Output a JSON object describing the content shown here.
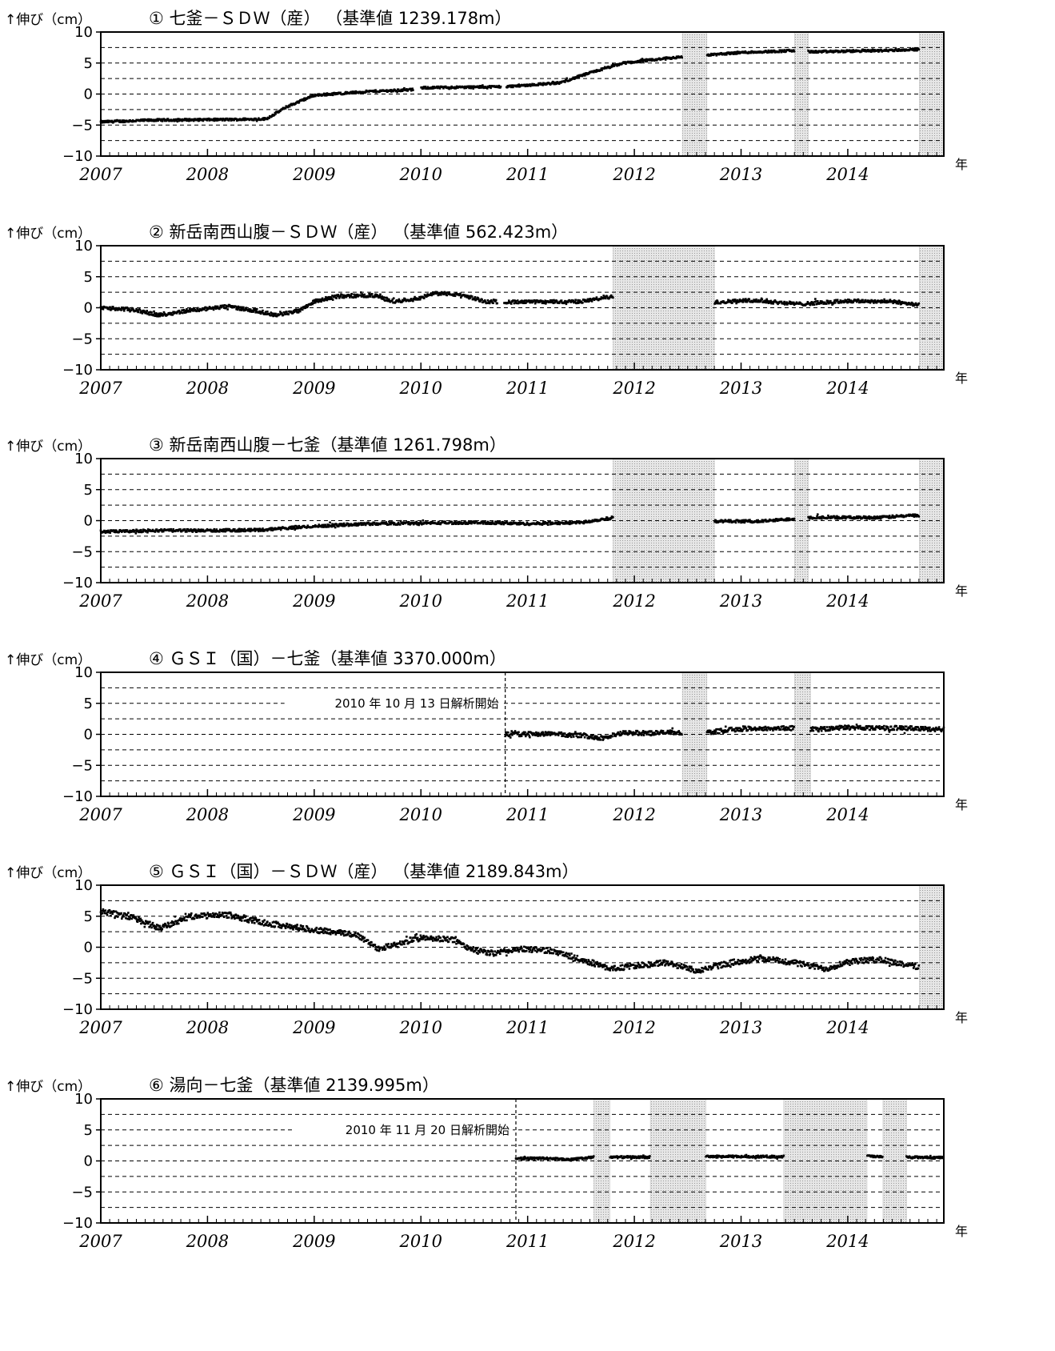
{
  "y_axis_label": "↑伸び（cm）",
  "x_unit": "年",
  "chart_data": [
    {
      "type": "scatter",
      "title": "① 七釜－ＳＤＷ（産） （基準値 1239.178m）",
      "ylabel": "↑伸び（cm）",
      "xlabel": "年",
      "xlim": [
        2007,
        2014.9
      ],
      "ylim": [
        -10,
        10
      ],
      "yticks": [
        10,
        5,
        0,
        -5,
        -10
      ],
      "xticks": [
        "2007",
        "2008",
        "2009",
        "2010",
        "2011",
        "2012",
        "2013",
        "2014"
      ],
      "reference_lines": [
        7.5,
        5,
        2.5,
        0,
        -2.5,
        -5,
        -7.5
      ],
      "missing_periods": [
        [
          2012.45,
          2012.68
        ],
        [
          2013.5,
          2013.63
        ],
        [
          2014.67,
          2014.9
        ]
      ],
      "series": [
        {
          "knots": [
            [
              2007.0,
              -4.5
            ],
            [
              2007.5,
              -4.2
            ],
            [
              2008.3,
              -4.1
            ],
            [
              2008.55,
              -4.0
            ],
            [
              2008.75,
              -2.0
            ],
            [
              2009.0,
              -0.2
            ],
            [
              2009.5,
              0.4
            ],
            [
              2009.93,
              0.7
            ],
            [
              2010.0,
              1.0
            ],
            [
              2010.8,
              1.2
            ],
            [
              2011.3,
              1.8
            ],
            [
              2011.6,
              3.5
            ],
            [
              2011.9,
              5.0
            ],
            [
              2012.45,
              6.0
            ],
            [
              2012.7,
              6.3
            ],
            [
              2013.0,
              6.7
            ],
            [
              2013.5,
              7.0
            ],
            [
              2013.65,
              6.8
            ],
            [
              2014.3,
              7.0
            ],
            [
              2014.67,
              7.2
            ]
          ],
          "gaps": [
            [
              2009.93,
              2010.0
            ],
            [
              2010.75,
              2010.8
            ],
            [
              2012.45,
              2012.68
            ],
            [
              2013.5,
              2013.63
            ],
            [
              2014.67,
              2014.9
            ]
          ],
          "scatter_cm": 0.18
        }
      ]
    },
    {
      "type": "scatter",
      "title": "② 新岳南西山腹－ＳＤＷ（産） （基準値 562.423m）",
      "ylabel": "↑伸び（cm）",
      "xlabel": "年",
      "xlim": [
        2007,
        2014.9
      ],
      "ylim": [
        -10,
        10
      ],
      "yticks": [
        10,
        5,
        0,
        -5,
        -10
      ],
      "xticks": [
        "2007",
        "2008",
        "2009",
        "2010",
        "2011",
        "2012",
        "2013",
        "2014"
      ],
      "reference_lines": [
        7.5,
        5,
        2.5,
        0,
        -2.5,
        -5,
        -7.5
      ],
      "missing_periods": [
        [
          2011.8,
          2012.75
        ],
        [
          2014.67,
          2014.9
        ]
      ],
      "series": [
        {
          "knots": [
            [
              2007.0,
              0.0
            ],
            [
              2007.3,
              -0.3
            ],
            [
              2007.55,
              -1.2
            ],
            [
              2007.8,
              -0.5
            ],
            [
              2008.2,
              0.2
            ],
            [
              2008.45,
              -0.5
            ],
            [
              2008.65,
              -1.2
            ],
            [
              2008.85,
              -0.5
            ],
            [
              2009.0,
              1.0
            ],
            [
              2009.2,
              1.8
            ],
            [
              2009.55,
              2.0
            ],
            [
              2009.75,
              1.0
            ],
            [
              2010.0,
              1.6
            ],
            [
              2010.15,
              2.4
            ],
            [
              2010.4,
              2.0
            ],
            [
              2010.6,
              1.0
            ],
            [
              2010.9,
              0.9
            ],
            [
              2011.5,
              1.0
            ],
            [
              2011.8,
              1.8
            ],
            [
              2012.75,
              0.9
            ],
            [
              2013.1,
              1.2
            ],
            [
              2013.55,
              0.6
            ],
            [
              2014.0,
              1.1
            ],
            [
              2014.4,
              1.0
            ],
            [
              2014.67,
              0.5
            ]
          ],
          "gaps": [
            [
              2010.72,
              2010.78
            ],
            [
              2011.8,
              2012.75
            ],
            [
              2014.67,
              2014.9
            ]
          ],
          "scatter_cm": 0.28
        }
      ]
    },
    {
      "type": "scatter",
      "title": "③ 新岳南西山腹－七釜（基準値 1261.798m）",
      "ylabel": "↑伸び（cm）",
      "xlabel": "年",
      "xlim": [
        2007,
        2014.9
      ],
      "ylim": [
        -10,
        10
      ],
      "yticks": [
        10,
        5,
        0,
        -5,
        -10
      ],
      "xticks": [
        "2007",
        "2008",
        "2009",
        "2010",
        "2011",
        "2012",
        "2013",
        "2014"
      ],
      "reference_lines": [
        7.5,
        5,
        2.5,
        0,
        -2.5,
        -5,
        -7.5
      ],
      "missing_periods": [
        [
          2011.8,
          2012.75
        ],
        [
          2013.5,
          2013.63
        ],
        [
          2014.67,
          2014.9
        ]
      ],
      "series": [
        {
          "knots": [
            [
              2007.0,
              -1.8
            ],
            [
              2007.5,
              -1.6
            ],
            [
              2008.0,
              -1.6
            ],
            [
              2008.5,
              -1.5
            ],
            [
              2009.0,
              -0.9
            ],
            [
              2009.5,
              -0.5
            ],
            [
              2010.0,
              -0.4
            ],
            [
              2010.5,
              -0.3
            ],
            [
              2011.0,
              -0.5
            ],
            [
              2011.5,
              -0.3
            ],
            [
              2011.8,
              0.5
            ],
            [
              2012.75,
              -0.1
            ],
            [
              2013.2,
              -0.1
            ],
            [
              2013.5,
              0.3
            ],
            [
              2013.63,
              0.5
            ],
            [
              2014.3,
              0.5
            ],
            [
              2014.67,
              0.9
            ]
          ],
          "gaps": [
            [
              2011.8,
              2012.75
            ],
            [
              2013.5,
              2013.63
            ],
            [
              2014.67,
              2014.9
            ]
          ],
          "scatter_cm": 0.22
        }
      ]
    },
    {
      "type": "scatter",
      "title": "④ ＧＳＩ（国）－七釜（基準値 3370.000m）",
      "ylabel": "↑伸び（cm）",
      "xlabel": "年",
      "xlim": [
        2007,
        2014.9
      ],
      "ylim": [
        -10,
        10
      ],
      "yticks": [
        10,
        5,
        0,
        -5,
        -10
      ],
      "xticks": [
        "2007",
        "2008",
        "2009",
        "2010",
        "2011",
        "2012",
        "2013",
        "2014"
      ],
      "reference_lines": [
        7.5,
        5,
        2.5,
        0,
        -2.5,
        -5,
        -7.5
      ],
      "missing_periods": [
        [
          2012.45,
          2012.68
        ],
        [
          2013.5,
          2013.65
        ]
      ],
      "start_marker": {
        "x": 2010.79,
        "label": "2010 年 10 月 13 日解析開始"
      },
      "series": [
        {
          "knots": [
            [
              2010.79,
              0.0
            ],
            [
              2011.2,
              0.1
            ],
            [
              2011.5,
              -0.2
            ],
            [
              2011.7,
              -0.6
            ],
            [
              2011.9,
              0.2
            ],
            [
              2012.45,
              0.3
            ],
            [
              2012.68,
              0.3
            ],
            [
              2013.0,
              0.9
            ],
            [
              2013.5,
              1.0
            ],
            [
              2013.65,
              0.8
            ],
            [
              2014.0,
              1.1
            ],
            [
              2014.5,
              1.0
            ],
            [
              2014.9,
              0.8
            ]
          ],
          "gaps": [
            [
              2012.45,
              2012.68
            ],
            [
              2013.5,
              2013.65
            ]
          ],
          "scatter_cm": 0.35
        }
      ]
    },
    {
      "type": "scatter",
      "title": "⑤ ＧＳＩ（国）－ＳＤＷ（産） （基準値 2189.843m）",
      "ylabel": "↑伸び（cm）",
      "xlabel": "年",
      "xlim": [
        2007,
        2014.9
      ],
      "ylim": [
        -10,
        10
      ],
      "yticks": [
        10,
        5,
        0,
        -5,
        -10
      ],
      "xticks": [
        "2007",
        "2008",
        "2009",
        "2010",
        "2011",
        "2012",
        "2013",
        "2014"
      ],
      "reference_lines": [
        7.5,
        5,
        2.5,
        0,
        -2.5,
        -5,
        -7.5
      ],
      "missing_periods": [
        [
          2014.67,
          2014.9
        ]
      ],
      "series": [
        {
          "knots": [
            [
              2007.0,
              5.8
            ],
            [
              2007.3,
              4.8
            ],
            [
              2007.55,
              3.0
            ],
            [
              2007.85,
              5.0
            ],
            [
              2008.2,
              5.2
            ],
            [
              2008.5,
              4.0
            ],
            [
              2009.0,
              2.8
            ],
            [
              2009.4,
              2.0
            ],
            [
              2009.6,
              -0.2
            ],
            [
              2009.8,
              0.5
            ],
            [
              2009.95,
              1.5
            ],
            [
              2010.3,
              1.2
            ],
            [
              2010.5,
              -0.5
            ],
            [
              2010.7,
              -1.0
            ],
            [
              2010.9,
              -0.3
            ],
            [
              2011.2,
              -0.5
            ],
            [
              2011.5,
              -2.0
            ],
            [
              2011.8,
              -3.5
            ],
            [
              2012.0,
              -3.0
            ],
            [
              2012.3,
              -2.5
            ],
            [
              2012.6,
              -3.8
            ],
            [
              2012.9,
              -2.5
            ],
            [
              2013.2,
              -1.8
            ],
            [
              2013.5,
              -2.5
            ],
            [
              2013.8,
              -3.5
            ],
            [
              2014.0,
              -2.3
            ],
            [
              2014.3,
              -2.0
            ],
            [
              2014.67,
              -3.2
            ]
          ],
          "gaps": [
            [
              2014.67,
              2014.9
            ]
          ],
          "scatter_cm": 0.45
        }
      ]
    },
    {
      "type": "scatter",
      "title": "⑥ 湯向－七釜（基準値 2139.995m）",
      "ylabel": "↑伸び（cm）",
      "xlabel": "年",
      "xlim": [
        2007,
        2014.9
      ],
      "ylim": [
        -10,
        10
      ],
      "yticks": [
        10,
        5,
        0,
        -5,
        -10
      ],
      "xticks": [
        "2007",
        "2008",
        "2009",
        "2010",
        "2011",
        "2012",
        "2013",
        "2014"
      ],
      "reference_lines": [
        7.5,
        5,
        2.5,
        0,
        -2.5,
        -5,
        -7.5
      ],
      "missing_periods": [
        [
          2011.62,
          2011.77
        ],
        [
          2012.15,
          2012.67
        ],
        [
          2013.4,
          2014.18
        ],
        [
          2014.33,
          2014.55
        ]
      ],
      "start_marker": {
        "x": 2010.89,
        "label": "2010 年 11 月 20 日解析開始"
      },
      "series": [
        {
          "knots": [
            [
              2010.89,
              0.4
            ],
            [
              2011.2,
              0.4
            ],
            [
              2011.4,
              0.2
            ],
            [
              2011.62,
              0.6
            ],
            [
              2011.77,
              0.6
            ],
            [
              2012.15,
              0.6
            ],
            [
              2012.67,
              0.7
            ],
            [
              2013.4,
              0.7
            ],
            [
              2014.18,
              0.8
            ],
            [
              2014.33,
              0.6
            ],
            [
              2014.55,
              0.6
            ],
            [
              2014.9,
              0.5
            ]
          ],
          "gaps": [
            [
              2011.62,
              2011.77
            ],
            [
              2012.15,
              2012.67
            ],
            [
              2013.4,
              2014.18
            ],
            [
              2014.33,
              2014.55
            ]
          ],
          "scatter_cm": 0.18
        }
      ]
    }
  ]
}
